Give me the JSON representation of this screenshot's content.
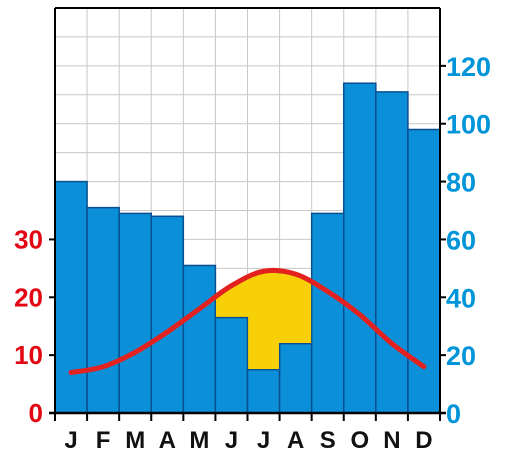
{
  "chart_data": {
    "type": "bar",
    "categories": [
      "J",
      "F",
      "M",
      "A",
      "M",
      "J",
      "J",
      "A",
      "S",
      "O",
      "N",
      "D"
    ],
    "series": [
      {
        "axis": "right",
        "kind": "bar",
        "values": [
          80,
          71,
          69,
          68,
          51,
          33,
          15,
          24,
          69,
          114,
          111,
          98
        ]
      },
      {
        "axis": "left",
        "kind": "line",
        "values": [
          7,
          8,
          10.5,
          14,
          18,
          22,
          24.5,
          24,
          21,
          17,
          12,
          8
        ]
      }
    ],
    "left_axis": {
      "ticks": [
        0,
        10,
        20,
        30
      ],
      "color": "#e30613",
      "ylim": [
        0,
        70
      ]
    },
    "right_axis": {
      "ticks": [
        0,
        20,
        40,
        60,
        80,
        100,
        120
      ],
      "color": "#0094d8",
      "ylim": [
        0,
        140
      ]
    },
    "grid": true,
    "colors": {
      "bars": "#0b8fd8",
      "bar_edge": "#0a4f8f",
      "line": "#e3221f",
      "surplus_fill": "#f7d008",
      "axis": "#000000",
      "grid": "#c8c8c8"
    }
  }
}
